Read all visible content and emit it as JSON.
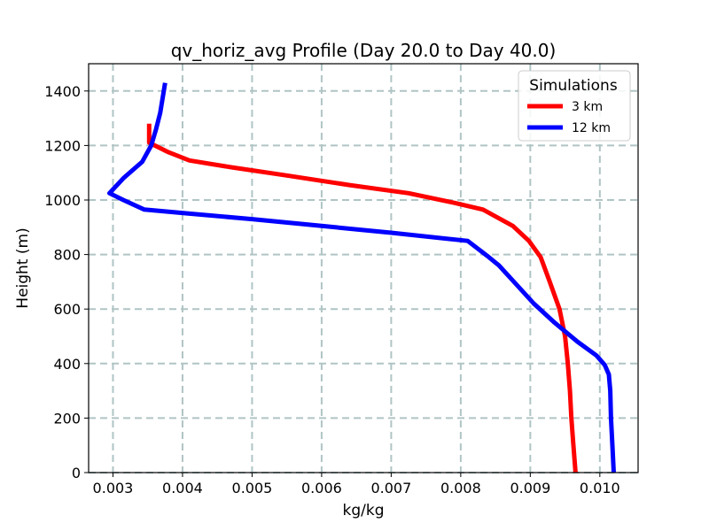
{
  "chart_data": {
    "type": "line",
    "title": "qv_horiz_avg Profile (Day 20.0 to Day 40.0)",
    "xlabel": "kg/kg",
    "ylabel": "Height (m)",
    "xlim": [
      0.00265,
      0.01055
    ],
    "ylim": [
      0,
      1500
    ],
    "xticks": [
      0.003,
      0.004,
      0.005,
      0.006,
      0.007,
      0.008,
      0.009,
      0.01
    ],
    "xtick_labels": [
      "0.003",
      "0.004",
      "0.005",
      "0.006",
      "0.007",
      "0.008",
      "0.009",
      "0.010"
    ],
    "yticks": [
      0,
      200,
      400,
      600,
      800,
      1000,
      1200,
      1400
    ],
    "ytick_labels": [
      "0",
      "200",
      "400",
      "600",
      "800",
      "1000",
      "1200",
      "1400"
    ],
    "grid": true,
    "legend": {
      "title": "Simulations",
      "placement": "top-right"
    },
    "series": [
      {
        "name": "3 km",
        "color": "#ff0000",
        "points": [
          [
            0.00965,
            0
          ],
          [
            0.00962,
            100
          ],
          [
            0.00959,
            200
          ],
          [
            0.00957,
            300
          ],
          [
            0.00954,
            400
          ],
          [
            0.0095,
            500
          ],
          [
            0.00942,
            600
          ],
          [
            0.00928,
            700
          ],
          [
            0.00915,
            790
          ],
          [
            0.00898,
            850
          ],
          [
            0.00875,
            905
          ],
          [
            0.00832,
            965
          ],
          [
            0.0079,
            990
          ],
          [
            0.00725,
            1025
          ],
          [
            0.0064,
            1055
          ],
          [
            0.0055,
            1090
          ],
          [
            0.0047,
            1120
          ],
          [
            0.0041,
            1145
          ],
          [
            0.0038,
            1175
          ],
          [
            0.00352,
            1210
          ],
          [
            0.00352,
            1280
          ]
        ]
      },
      {
        "name": "12 km",
        "color": "#0000ff",
        "points": [
          [
            0.0102,
            0
          ],
          [
            0.01018,
            100
          ],
          [
            0.01016,
            200
          ],
          [
            0.01015,
            300
          ],
          [
            0.01013,
            360
          ],
          [
            0.01007,
            395
          ],
          [
            0.00995,
            430
          ],
          [
            0.00968,
            480
          ],
          [
            0.00935,
            550
          ],
          [
            0.00905,
            620
          ],
          [
            0.0088,
            690
          ],
          [
            0.00855,
            760
          ],
          [
            0.00838,
            795
          ],
          [
            0.0081,
            850
          ],
          [
            0.007,
            880
          ],
          [
            0.006,
            905
          ],
          [
            0.005,
            930
          ],
          [
            0.0041,
            950
          ],
          [
            0.00345,
            965
          ],
          [
            0.00315,
            1000
          ],
          [
            0.00295,
            1025
          ],
          [
            0.00315,
            1080
          ],
          [
            0.00342,
            1140
          ],
          [
            0.00355,
            1200
          ],
          [
            0.00362,
            1260
          ],
          [
            0.00368,
            1320
          ],
          [
            0.00375,
            1430
          ]
        ]
      }
    ]
  }
}
